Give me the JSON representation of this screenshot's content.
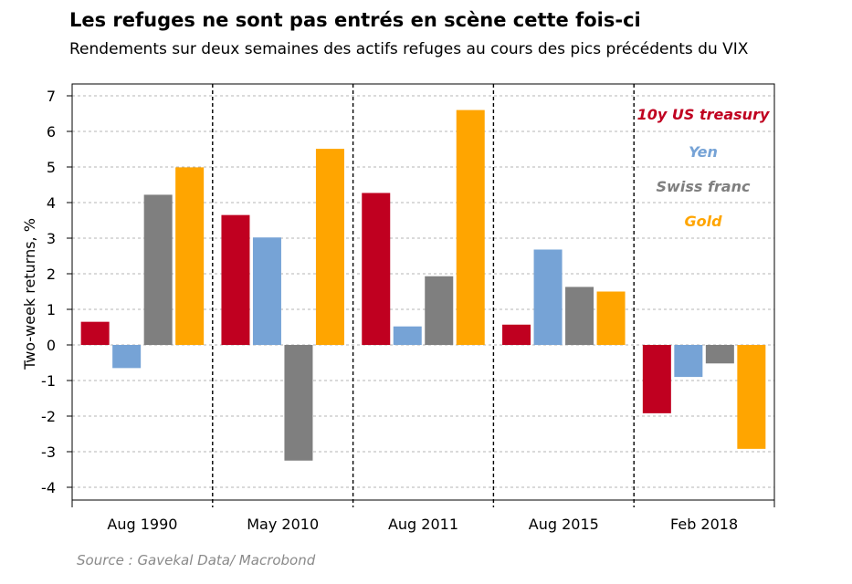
{
  "title": "Les refuges ne sont pas entrés en scène cette fois-ci",
  "subtitle": "Rendements sur deux semaines des actifs refuges au cours des pics précédents du VIX",
  "source": "Source : Gavekal Data/ Macrobond",
  "chart_data": {
    "type": "bar",
    "ylabel": "Two-week returns, %",
    "ylim": [
      -4,
      7
    ],
    "yticks": [
      "7",
      "6",
      "5",
      "4",
      "3",
      "2",
      "1",
      "0",
      "-1",
      "-2",
      "-3",
      "-4"
    ],
    "grid": true,
    "legend_position": "top-right",
    "categories": [
      "Aug 1990",
      "May 2010",
      "Aug 2011",
      "Aug 2015",
      "Feb 2018"
    ],
    "series": [
      {
        "name": "10y US treasury",
        "color": "#c00020",
        "values": [
          0.65,
          3.65,
          4.27,
          0.57,
          -1.92
        ]
      },
      {
        "name": "Yen",
        "color": "#76a3d6",
        "values": [
          -0.65,
          3.02,
          0.52,
          2.68,
          -0.9
        ]
      },
      {
        "name": "Swiss franc",
        "color": "#7f7f7f",
        "values": [
          4.22,
          -3.25,
          1.93,
          1.63,
          -0.52
        ]
      },
      {
        "name": "Gold",
        "color": "#ffa500",
        "values": [
          4.99,
          5.51,
          6.6,
          1.5,
          -2.92
        ]
      }
    ]
  }
}
